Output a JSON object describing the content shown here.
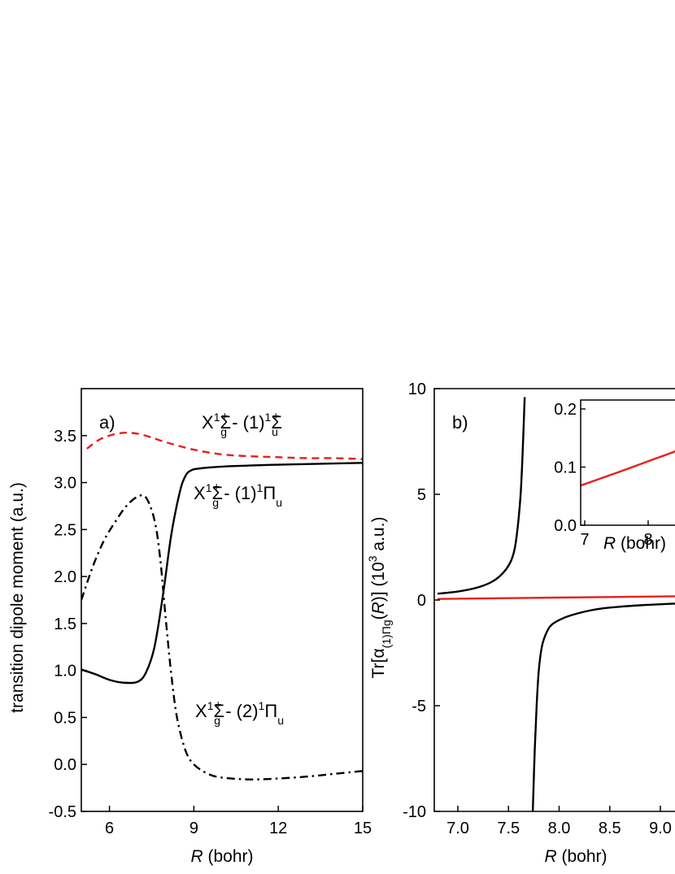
{
  "chart_data": [
    {
      "panel": "a)",
      "type": "line",
      "xlabel_italic": "R",
      "xlabel_rest": " (bohr)",
      "ylabel": "transition dipole moment (a.u.)",
      "xlim": [
        5,
        15
      ],
      "ylim": [
        -0.5,
        4.0
      ],
      "xticks": [
        6,
        9,
        12,
        15
      ],
      "yticks": [
        -0.5,
        0.0,
        0.5,
        1.0,
        1.5,
        2.0,
        2.5,
        3.0,
        3.5
      ],
      "ytick_labels": [
        "-0.5",
        "0.0",
        "0.5",
        "1.0",
        "1.5",
        "2.0",
        "2.5",
        "3.0",
        "3.5"
      ],
      "series": [
        {
          "label_state1": "X",
          "label_sup1": "1",
          "label_sym1": "Σ",
          "label_sub1": "g",
          "label_supp1": "+",
          "label_mid": " - (1)",
          "label_sup2": "1",
          "label_sym2": "Σ",
          "label_sub2": "u",
          "label_supp2": "+",
          "color": "#e8201e",
          "style": "dashed",
          "x": [
            5.2,
            5.6,
            6.0,
            6.5,
            7.0,
            7.5,
            8.0,
            9.0,
            10.0,
            11.0,
            12.0,
            13.0,
            14.0,
            15.0
          ],
          "y": [
            3.36,
            3.45,
            3.5,
            3.53,
            3.52,
            3.48,
            3.43,
            3.35,
            3.3,
            3.28,
            3.27,
            3.26,
            3.26,
            3.25
          ]
        },
        {
          "label_state1": "X",
          "label_sup1": "1",
          "label_sym1": "Σ",
          "label_sub1": "g",
          "label_supp1": "+",
          "label_mid": " - (1)",
          "label_sup2": "1",
          "label_sym2": "Π",
          "label_sub2": "u",
          "label_supp2": "",
          "color": "#000000",
          "style": "solid",
          "x": [
            5.0,
            5.5,
            6.0,
            6.5,
            7.0,
            7.3,
            7.6,
            7.9,
            8.2,
            8.5,
            8.7,
            8.9,
            9.2,
            10.0,
            12.0,
            15.0
          ],
          "y": [
            1.01,
            0.96,
            0.9,
            0.87,
            0.88,
            0.98,
            1.25,
            1.8,
            2.45,
            2.9,
            3.07,
            3.13,
            3.15,
            3.17,
            3.19,
            3.21
          ]
        },
        {
          "label_state1": "X",
          "label_sup1": "1",
          "label_sym1": "Σ",
          "label_sub1": "g",
          "label_supp1": "+",
          "label_mid": " - (2)",
          "label_sup2": "1",
          "label_sym2": "Π",
          "label_sub2": "u",
          "label_supp2": "",
          "color": "#000000",
          "style": "dashdot",
          "x": [
            5.0,
            5.4,
            5.8,
            6.2,
            6.6,
            7.0,
            7.3,
            7.6,
            7.8,
            8.0,
            8.2,
            8.4,
            8.7,
            9.0,
            9.5,
            10.0,
            11.0,
            12.0,
            13.0,
            14.0,
            15.0
          ],
          "y": [
            1.75,
            2.1,
            2.38,
            2.58,
            2.75,
            2.85,
            2.84,
            2.6,
            2.2,
            1.55,
            0.95,
            0.5,
            0.15,
            0.0,
            -0.1,
            -0.14,
            -0.16,
            -0.15,
            -0.13,
            -0.1,
            -0.07
          ]
        }
      ]
    },
    {
      "panel": "b)",
      "type": "line",
      "xlabel_italic": "R",
      "xlabel_rest": " (bohr)",
      "ylabel_parts": [
        "Tr[α",
        "(1)Πg",
        "(",
        "R",
        ")] (10",
        "3",
        " a.u.)"
      ],
      "xlim": [
        6.8,
        9.2
      ],
      "ylim": [
        -10,
        10
      ],
      "xticks": [
        7.0,
        7.5,
        8.0,
        8.5,
        9.0
      ],
      "xtick_labels": [
        "7.0",
        "7.5",
        "8.0",
        "8.5",
        "9.0"
      ],
      "yticks": [
        -10,
        -5,
        0,
        5,
        10
      ],
      "ytick_labels": [
        "-10",
        "-5",
        "0",
        "5",
        "10"
      ],
      "series": [
        {
          "branch": "upper",
          "color": "#000000",
          "x": [
            6.8,
            7.0,
            7.2,
            7.35,
            7.45,
            7.52,
            7.56,
            7.59,
            7.62,
            7.64,
            7.66
          ],
          "y": [
            0.3,
            0.4,
            0.6,
            0.9,
            1.3,
            1.8,
            2.4,
            3.4,
            5.0,
            7.0,
            9.6
          ]
        },
        {
          "branch": "lower",
          "color": "#000000",
          "x": [
            7.74,
            7.76,
            7.78,
            7.8,
            7.83,
            7.87,
            7.92,
            8.0,
            8.1,
            8.3,
            8.5,
            8.8,
            9.2
          ],
          "y": [
            -10.0,
            -7.0,
            -4.8,
            -3.3,
            -2.2,
            -1.6,
            -1.2,
            -0.95,
            -0.75,
            -0.5,
            -0.36,
            -0.25,
            -0.16
          ]
        },
        {
          "branch": "red",
          "color": "#e8201e",
          "x": [
            6.8,
            9.2
          ],
          "y": [
            0.05,
            0.18
          ]
        }
      ],
      "inset": {
        "xlabel_italic": "R",
        "xlabel_rest": " (bohr)",
        "xlim": [
          6.85,
          9.2
        ],
        "ylim": [
          0.0,
          0.22
        ],
        "xticks": [
          7,
          8
        ],
        "xtick_labels": [
          "7",
          "8"
        ],
        "yticks": [
          0.0,
          0.1,
          0.2
        ],
        "ytick_labels": [
          "0.0",
          "0.1",
          "0.2"
        ],
        "series": [
          {
            "color": "#e8201e",
            "x": [
              6.85,
              7.5,
              8.0,
              8.5,
              9.2
            ],
            "y": [
              0.065,
              0.09,
              0.11,
              0.13,
              0.16
            ]
          }
        ]
      }
    }
  ]
}
